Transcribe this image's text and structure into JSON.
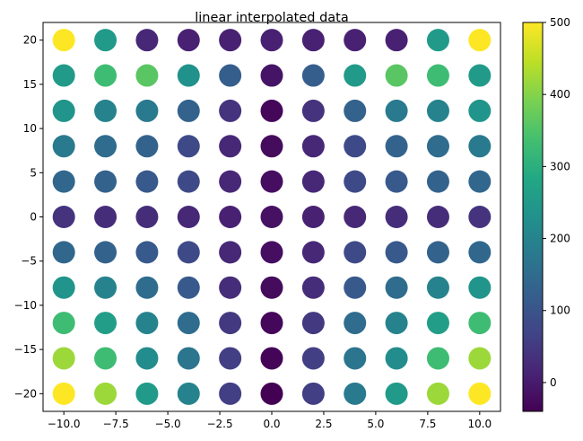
{
  "chart_data": {
    "type": "scatter",
    "title": "linear interpolated data",
    "xlabel": "",
    "ylabel": "",
    "xlim": [
      -11.0,
      11.0
    ],
    "ylim": [
      -22.0,
      22.0
    ],
    "grid": false,
    "x": [
      -10,
      -8,
      -6,
      -4,
      -2,
      0,
      2,
      4,
      6,
      8,
      10
    ],
    "y": [
      -20,
      -16,
      -12,
      -8,
      -4,
      0,
      4,
      8,
      12,
      16,
      20
    ],
    "values": [
      [
        500,
        420,
        250,
        200,
        60,
        -40,
        60,
        180,
        250,
        420,
        500
      ],
      [
        420,
        330,
        220,
        170,
        60,
        -35,
        60,
        170,
        220,
        330,
        420
      ],
      [
        330,
        260,
        200,
        150,
        50,
        -30,
        50,
        150,
        200,
        260,
        330
      ],
      [
        240,
        200,
        150,
        110,
        30,
        -25,
        30,
        110,
        150,
        200,
        240
      ],
      [
        140,
        130,
        110,
        80,
        20,
        -20,
        20,
        80,
        110,
        130,
        140
      ],
      [
        40,
        30,
        30,
        20,
        10,
        -15,
        10,
        20,
        30,
        30,
        40
      ],
      [
        140,
        130,
        110,
        80,
        20,
        -20,
        20,
        80,
        110,
        130,
        140
      ],
      [
        180,
        150,
        130,
        80,
        20,
        -25,
        20,
        80,
        130,
        150,
        180
      ],
      [
        240,
        200,
        180,
        130,
        40,
        -30,
        40,
        130,
        180,
        200,
        240
      ],
      [
        250,
        330,
        360,
        230,
        120,
        -10,
        120,
        250,
        360,
        330,
        250
      ],
      [
        500,
        250,
        20,
        10,
        10,
        10,
        10,
        10,
        10,
        250,
        500
      ]
    ],
    "colorbar": {
      "min": -40,
      "max": 500,
      "colormap": "viridis",
      "ticks": [
        0,
        100,
        200,
        300,
        400,
        500
      ]
    },
    "x_ticks": [
      "−10.0",
      "−7.5",
      "−5.0",
      "−2.5",
      "0.0",
      "2.5",
      "5.0",
      "7.5",
      "10.0"
    ],
    "y_ticks": [
      "−20",
      "−15",
      "−10",
      "−5",
      "0",
      "5",
      "10",
      "15",
      "20"
    ],
    "colorbar_tick_labels": [
      "0",
      "100",
      "200",
      "300",
      "400",
      "500"
    ]
  }
}
